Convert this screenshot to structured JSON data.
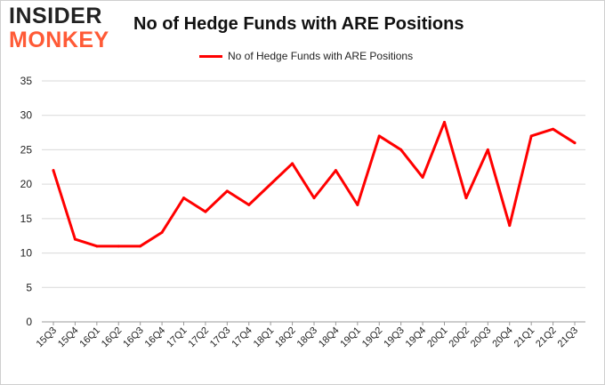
{
  "logo": {
    "line1": "INSIDER",
    "line2": "MONKEY"
  },
  "chart_data": {
    "type": "line",
    "title": "No of Hedge Funds with ARE Positions",
    "xlabel": "",
    "ylabel": "",
    "categories": [
      "15Q3",
      "15Q4",
      "16Q1",
      "16Q2",
      "16Q3",
      "16Q4",
      "17Q1",
      "17Q2",
      "17Q3",
      "17Q4",
      "18Q1",
      "18Q2",
      "18Q3",
      "18Q4",
      "19Q1",
      "19Q2",
      "19Q3",
      "19Q4",
      "20Q1",
      "20Q2",
      "20Q3",
      "20Q4",
      "21Q1",
      "21Q2",
      "21Q3"
    ],
    "series": [
      {
        "name": "No of Hedge Funds with ARE Positions",
        "color": "#ff0000",
        "values": [
          22,
          12,
          11,
          11,
          11,
          13,
          18,
          16,
          19,
          17,
          20,
          23,
          18,
          22,
          17,
          27,
          25,
          21,
          29,
          18,
          25,
          14,
          27,
          28,
          26
        ]
      }
    ],
    "ylim": [
      0,
      35
    ],
    "yticks": [
      0,
      5,
      10,
      15,
      20,
      25,
      30,
      35
    ],
    "grid": true,
    "legend_position": "top-center"
  }
}
